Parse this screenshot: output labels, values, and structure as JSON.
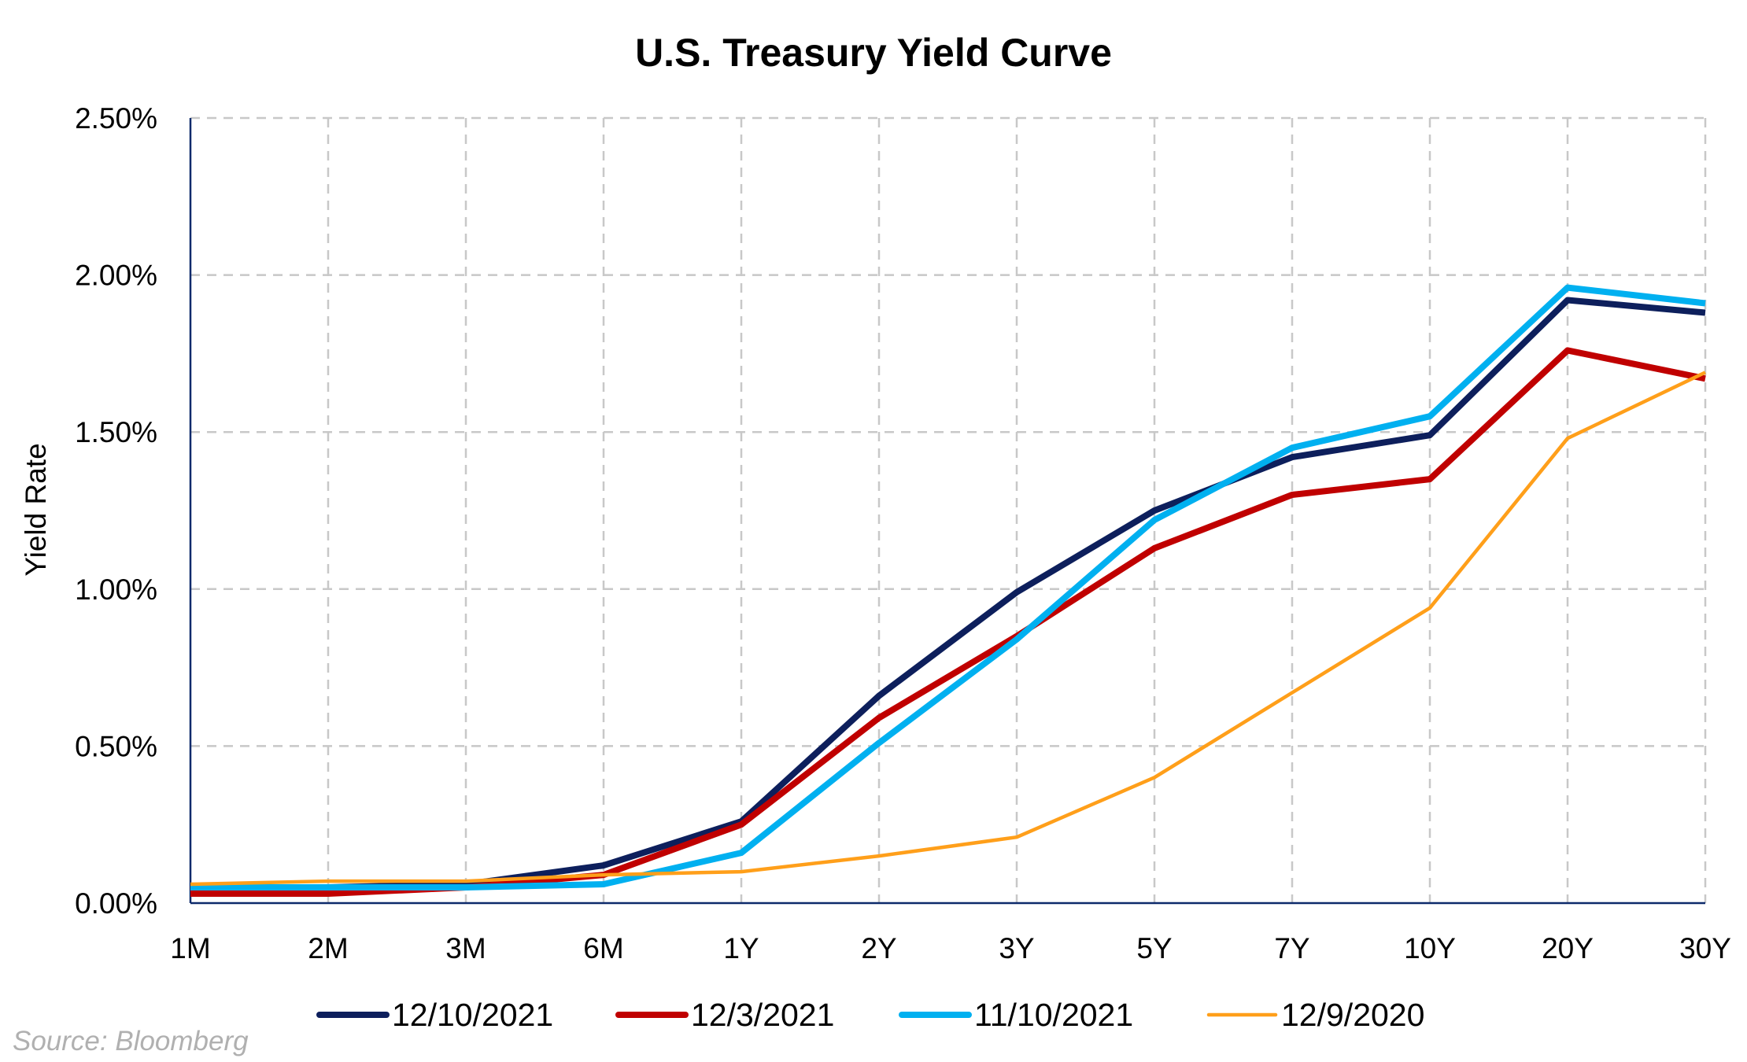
{
  "chart_data": {
    "type": "line",
    "title": "U.S. Treasury Yield Curve",
    "xlabel": "",
    "ylabel": "Yield Rate",
    "categories": [
      "1M",
      "2M",
      "3M",
      "6M",
      "1Y",
      "2Y",
      "3Y",
      "5Y",
      "7Y",
      "10Y",
      "20Y",
      "30Y"
    ],
    "y_ticks": [
      "0.00%",
      "0.50%",
      "1.00%",
      "1.50%",
      "2.00%",
      "2.50%"
    ],
    "ylim": [
      0,
      2.5
    ],
    "grid": true,
    "legend_position": "bottom",
    "series": [
      {
        "name": "12/10/2021",
        "color": "#0d1f5c",
        "values": [
          0.03,
          0.05,
          0.06,
          0.12,
          0.26,
          0.66,
          0.99,
          1.25,
          1.42,
          1.49,
          1.92,
          1.88
        ]
      },
      {
        "name": "12/3/2021",
        "color": "#c00000",
        "values": [
          0.03,
          0.03,
          0.05,
          0.09,
          0.25,
          0.59,
          0.85,
          1.13,
          1.3,
          1.35,
          1.76,
          1.67
        ]
      },
      {
        "name": "11/10/2021",
        "color": "#00b0f0",
        "values": [
          0.05,
          0.05,
          0.05,
          0.06,
          0.16,
          0.51,
          0.84,
          1.22,
          1.45,
          1.55,
          1.96,
          1.91
        ]
      },
      {
        "name": "12/9/2020",
        "color": "#ff9f1a",
        "values": [
          0.06,
          0.07,
          0.07,
          0.09,
          0.1,
          0.15,
          0.21,
          0.4,
          0.67,
          0.94,
          1.48,
          1.69
        ]
      }
    ]
  },
  "source": "Source: Bloomberg"
}
